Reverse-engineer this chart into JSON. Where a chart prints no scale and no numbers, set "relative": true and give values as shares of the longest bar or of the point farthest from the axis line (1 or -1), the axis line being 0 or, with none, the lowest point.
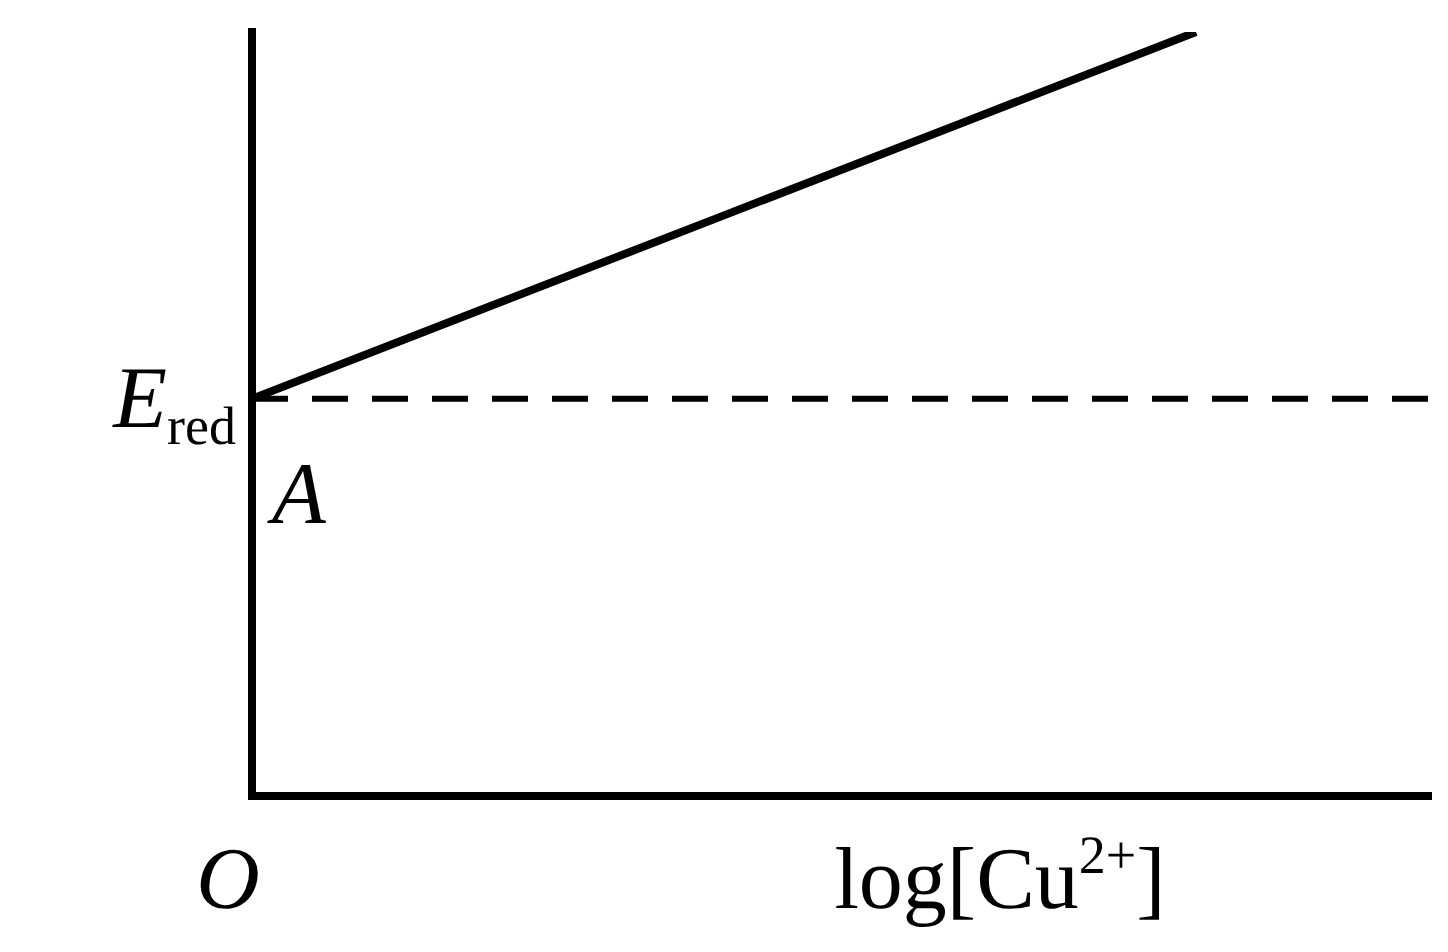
{
  "chart_data": {
    "type": "line",
    "relative": true,
    "xlabel": "log[Cu$^{2+}$]",
    "categories": [
      null,
      null,
      null,
      null,
      null,
      null
    ],
    "series": [
      {
        "color": "#000000",
        "values": [
          0.52,
          0.64,
          0.76,
          0.88,
          1,
          null
        ]
      }
    ],
    "ref_lines": [
      {
        "axis": "y",
        "value": 0.52,
        "label": "E$_{red}$",
        "color": "#000000",
        "line_style": "dashed"
      }
    ],
    "annotations": [
      "A",
      "O"
    ],
    "marker": "none",
    "line_style": "solid",
    "grid": false,
    "legend": false
  }
}
